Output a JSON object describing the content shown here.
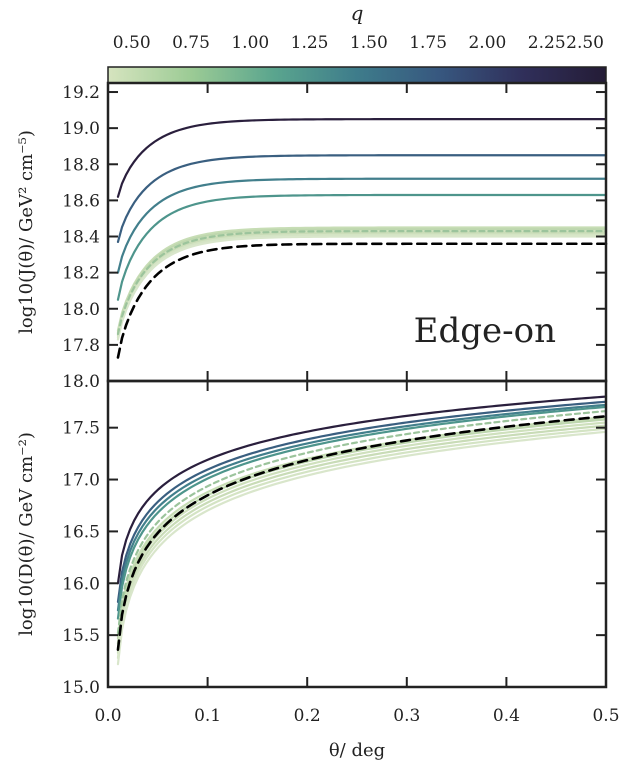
{
  "colorbar": {
    "label": "q",
    "ticks": [
      "0.50",
      "0.75",
      "1.00",
      "1.25",
      "1.50",
      "1.75",
      "2.00",
      "2.25",
      "2.50"
    ],
    "range": [
      0.4,
      2.5
    ],
    "colors": [
      "#d6e4bf",
      "#9ccb95",
      "#5aa58e",
      "#3e7c8b",
      "#37577f",
      "#302f5a",
      "#241c36"
    ]
  },
  "chart_data": [
    {
      "type": "line",
      "panel": "top",
      "annotation": "Edge-on",
      "ylabel": "log10(J(θ)/ GeV² cm⁻⁵)",
      "ylim": [
        17.6,
        19.25
      ],
      "yticks": [
        "17.8",
        "18.0",
        "18.2",
        "18.4",
        "18.6",
        "18.8",
        "19.0",
        "19.2"
      ],
      "xlim": [
        0.0,
        0.5
      ],
      "series": [
        {
          "q": 2.5,
          "color": "#2a1f3d",
          "plateau": 19.05,
          "start": 18.62
        },
        {
          "q": 2.0,
          "color": "#3a5f80",
          "plateau": 18.85,
          "start": 18.37
        },
        {
          "q": 1.75,
          "color": "#427f8c",
          "plateau": 18.72,
          "start": 18.2
        },
        {
          "q": 1.5,
          "color": "#4e958c",
          "plateau": 18.63,
          "start": 18.05
        },
        {
          "q": 1.0,
          "color": "#c7ddb5",
          "plateau": 18.45,
          "start": 17.88
        },
        {
          "q": 0.9,
          "color": "#bed7ae",
          "plateau": 18.44,
          "start": 17.87
        },
        {
          "q": 0.8,
          "color": "#cfe1bd",
          "plateau": 18.43,
          "start": 17.86
        },
        {
          "q": 0.7,
          "color": "#c9dcb7",
          "plateau": 18.42,
          "start": 17.85
        },
        {
          "q": 0.6,
          "color": "#d4e4c4",
          "plateau": 18.41,
          "start": 17.84
        },
        {
          "q": 0.5,
          "color": "#d9e6cb",
          "plateau": 18.4,
          "start": 17.83
        },
        {
          "q": 1.1,
          "color": "#9cc49c",
          "plateau": 18.43,
          "start": 17.86,
          "dashed": true
        },
        {
          "q": null,
          "color": "#000000",
          "plateau": 18.36,
          "start": 17.73,
          "dashed": true
        }
      ]
    },
    {
      "type": "line",
      "panel": "bottom",
      "ylabel": "log10(D(θ)/ GeV cm⁻²)",
      "xlabel": "θ/ deg",
      "ylim": [
        15.0,
        17.95
      ],
      "yticks": [
        "15.0",
        "15.5",
        "16.0",
        "16.5",
        "17.0",
        "17.5",
        "18.0"
      ],
      "xlim": [
        0.0,
        0.5
      ],
      "xticks": [
        "0.0",
        "0.1",
        "0.2",
        "0.3",
        "0.4",
        "0.5"
      ],
      "series": [
        {
          "q": 2.5,
          "color": "#2a1f3d",
          "end": 17.8,
          "start": 16.0
        },
        {
          "q": 2.0,
          "color": "#3a5f80",
          "end": 17.75,
          "start": 15.82
        },
        {
          "q": 1.75,
          "color": "#427f8c",
          "end": 17.72,
          "start": 15.74
        },
        {
          "q": 1.5,
          "color": "#4e958c",
          "end": 17.7,
          "start": 15.66
        },
        {
          "q": 1.0,
          "color": "#c7ddb5",
          "end": 17.6,
          "start": 15.47
        },
        {
          "q": 0.9,
          "color": "#bed7ae",
          "end": 17.58,
          "start": 15.42
        },
        {
          "q": 0.8,
          "color": "#cfe1bd",
          "end": 17.55,
          "start": 15.38
        },
        {
          "q": 0.7,
          "color": "#c9dcb7",
          "end": 17.52,
          "start": 15.33
        },
        {
          "q": 0.6,
          "color": "#d4e4c4",
          "end": 17.49,
          "start": 15.28
        },
        {
          "q": 0.5,
          "color": "#d9e6cb",
          "end": 17.46,
          "start": 15.22
        },
        {
          "q": 1.1,
          "color": "#9cc49c",
          "end": 17.66,
          "start": 15.52,
          "dashed": true
        },
        {
          "q": null,
          "color": "#000000",
          "end": 17.61,
          "start": 15.36,
          "dashed": true
        }
      ]
    }
  ]
}
